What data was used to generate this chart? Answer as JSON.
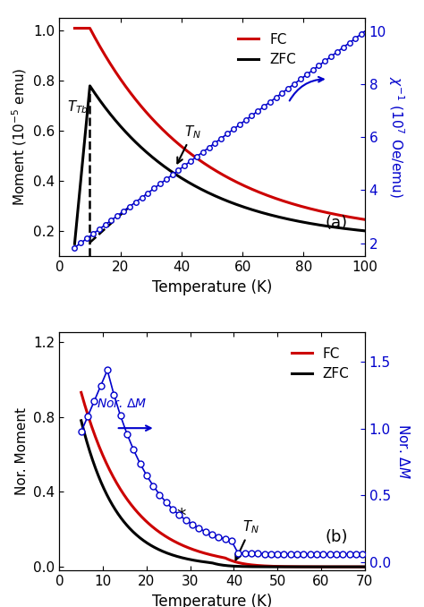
{
  "panel_a": {
    "xlabel": "Temperature (K)",
    "ylabel_left": "Moment (10$^{-5}$ emu)",
    "ylabel_right": "$\\chi^{-1}$ (10$^7$ Oe/emu)",
    "xlim": [
      0,
      100
    ],
    "ylim_left": [
      0.1,
      1.05
    ],
    "ylim_right": [
      1.5,
      10.5
    ],
    "T_Tb": 10,
    "T_N": 38,
    "fc_color": "#cc0000",
    "zfc_color": "#000000",
    "chi_color": "#0000cc"
  },
  "panel_b": {
    "xlabel": "Temperature (K)",
    "ylabel_left": "Nor. Moment",
    "ylabel_right": "Nor. $\\Delta M$",
    "xlim": [
      0,
      70
    ],
    "ylim_left": [
      -0.02,
      1.25
    ],
    "ylim_right": [
      -0.065,
      1.72
    ],
    "T_N": 40,
    "star_T": 28,
    "star_y": 0.27,
    "fc_color": "#cc0000",
    "zfc_color": "#000000",
    "delta_color": "#0000cc"
  }
}
